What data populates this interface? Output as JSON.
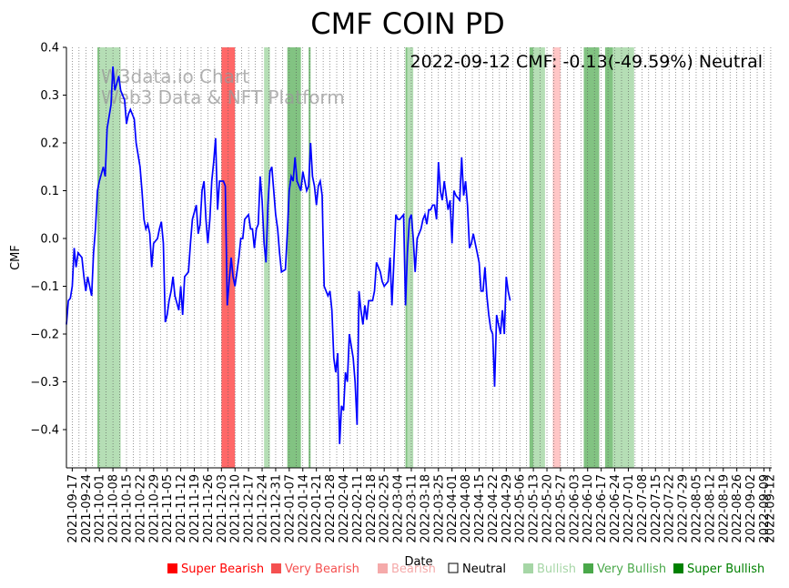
{
  "chart_data": {
    "type": "line",
    "title": "CMF COIN PD",
    "xlabel": "Date",
    "ylabel": "CMF",
    "ylim": [
      -0.48,
      0.4
    ],
    "yticks": [
      0.4,
      0.3,
      0.2,
      0.1,
      0.0,
      -0.1,
      -0.2,
      -0.3,
      -0.4
    ],
    "ytick_labels": [
      "0.4",
      "0.3",
      "0.2",
      "0.1",
      "0.0",
      "−0.1",
      "−0.2",
      "−0.3",
      "−0.4"
    ],
    "x_start": "2021-09-14",
    "x_end": "2022-09-13",
    "xtick_labels": [
      "2021-09-17",
      "2021-09-24",
      "2021-10-01",
      "2021-10-08",
      "2021-10-15",
      "2021-10-22",
      "2021-10-29",
      "2021-11-05",
      "2021-11-12",
      "2021-11-19",
      "2021-11-26",
      "2021-12-03",
      "2021-12-10",
      "2021-12-17",
      "2021-12-24",
      "2021-12-31",
      "2022-01-07",
      "2022-01-14",
      "2022-01-21",
      "2022-01-28",
      "2022-02-04",
      "2022-02-11",
      "2022-02-18",
      "2022-02-25",
      "2022-03-04",
      "2022-03-11",
      "2022-03-18",
      "2022-03-25",
      "2022-04-01",
      "2022-04-08",
      "2022-04-15",
      "2022-04-22",
      "2022-04-29",
      "2022-05-06",
      "2022-05-13",
      "2022-05-20",
      "2022-05-27",
      "2022-06-03",
      "2022-06-10",
      "2022-06-17",
      "2022-06-24",
      "2022-07-01",
      "2022-07-08",
      "2022-07-15",
      "2022-07-22",
      "2022-07-29",
      "2022-08-05",
      "2022-08-12",
      "2022-08-19",
      "2022-08-26",
      "2022-09-02",
      "2022-09-09",
      "2022-09-12"
    ],
    "series": [
      {
        "name": "CMF",
        "color": "#0000ff",
        "points": [
          [
            "2021-09-14",
            -0.18
          ],
          [
            "2021-09-15",
            -0.13
          ],
          [
            "2021-09-16",
            -0.125
          ],
          [
            "2021-09-17",
            -0.1
          ],
          [
            "2021-09-18",
            -0.02
          ],
          [
            "2021-09-19",
            -0.06
          ],
          [
            "2021-09-20",
            -0.03
          ],
          [
            "2021-09-22",
            -0.04
          ],
          [
            "2021-09-23",
            -0.08
          ],
          [
            "2021-09-24",
            -0.11
          ],
          [
            "2021-09-25",
            -0.08
          ],
          [
            "2021-09-26",
            -0.1
          ],
          [
            "2021-09-27",
            -0.12
          ],
          [
            "2021-09-28",
            -0.03
          ],
          [
            "2021-09-29",
            0.02
          ],
          [
            "2021-09-30",
            0.1
          ],
          [
            "2021-10-01",
            0.12
          ],
          [
            "2021-10-03",
            0.15
          ],
          [
            "2021-10-04",
            0.13
          ],
          [
            "2021-10-05",
            0.23
          ],
          [
            "2021-10-07",
            0.28
          ],
          [
            "2021-10-08",
            0.36
          ],
          [
            "2021-10-09",
            0.31
          ],
          [
            "2021-10-11",
            0.34
          ],
          [
            "2021-10-12",
            0.31
          ],
          [
            "2021-10-13",
            0.3
          ],
          [
            "2021-10-14",
            0.29
          ],
          [
            "2021-10-15",
            0.24
          ],
          [
            "2021-10-16",
            0.26
          ],
          [
            "2021-10-17",
            0.27
          ],
          [
            "2021-10-19",
            0.25
          ],
          [
            "2021-10-20",
            0.2
          ],
          [
            "2021-10-22",
            0.15
          ],
          [
            "2021-10-23",
            0.1
          ],
          [
            "2021-10-24",
            0.04
          ],
          [
            "2021-10-25",
            0.02
          ],
          [
            "2021-10-26",
            0.03
          ],
          [
            "2021-10-27",
            0.01
          ],
          [
            "2021-10-28",
            -0.06
          ],
          [
            "2021-10-29",
            -0.01
          ],
          [
            "2021-10-31",
            0.0
          ],
          [
            "2021-11-01",
            0.02
          ],
          [
            "2021-11-02",
            0.035
          ],
          [
            "2021-11-03",
            -0.01
          ],
          [
            "2021-11-04",
            -0.175
          ],
          [
            "2021-11-05",
            -0.16
          ],
          [
            "2021-11-06",
            -0.13
          ],
          [
            "2021-11-07",
            -0.11
          ],
          [
            "2021-11-08",
            -0.08
          ],
          [
            "2021-11-09",
            -0.12
          ],
          [
            "2021-11-11",
            -0.15
          ],
          [
            "2021-11-12",
            -0.1
          ],
          [
            "2021-11-13",
            -0.16
          ],
          [
            "2021-11-14",
            -0.08
          ],
          [
            "2021-11-16",
            -0.07
          ],
          [
            "2021-11-17",
            -0.01
          ],
          [
            "2021-11-18",
            0.04
          ],
          [
            "2021-11-20",
            0.07
          ],
          [
            "2021-11-21",
            0.01
          ],
          [
            "2021-11-22",
            0.03
          ],
          [
            "2021-11-23",
            0.1
          ],
          [
            "2021-11-24",
            0.12
          ],
          [
            "2021-11-25",
            0.04
          ],
          [
            "2021-11-26",
            -0.01
          ],
          [
            "2021-11-27",
            0.04
          ],
          [
            "2021-11-28",
            0.12
          ],
          [
            "2021-11-29",
            0.16
          ],
          [
            "2021-11-30",
            0.21
          ],
          [
            "2021-12-01",
            0.06
          ],
          [
            "2021-12-02",
            0.12
          ],
          [
            "2021-12-04",
            0.12
          ],
          [
            "2021-12-05",
            0.11
          ],
          [
            "2021-12-06",
            -0.14
          ],
          [
            "2021-12-07",
            -0.09
          ],
          [
            "2021-12-08",
            -0.04
          ],
          [
            "2021-12-09",
            -0.08
          ],
          [
            "2021-12-10",
            -0.1
          ],
          [
            "2021-12-11",
            -0.07
          ],
          [
            "2021-12-12",
            -0.04
          ],
          [
            "2021-12-13",
            0.0
          ],
          [
            "2021-12-14",
            0.0
          ],
          [
            "2021-12-15",
            0.04
          ],
          [
            "2021-12-17",
            0.05
          ],
          [
            "2021-12-18",
            0.02
          ],
          [
            "2021-12-19",
            0.02
          ],
          [
            "2021-12-20",
            -0.02
          ],
          [
            "2021-12-21",
            0.02
          ],
          [
            "2021-12-22",
            0.03
          ],
          [
            "2021-12-23",
            0.13
          ],
          [
            "2021-12-24",
            0.08
          ],
          [
            "2021-12-25",
            -0.01
          ],
          [
            "2021-12-26",
            -0.05
          ],
          [
            "2021-12-27",
            0.07
          ],
          [
            "2021-12-28",
            0.14
          ],
          [
            "2021-12-29",
            0.15
          ],
          [
            "2021-12-30",
            0.1
          ],
          [
            "2021-12-31",
            0.05
          ],
          [
            "2022-01-01",
            0.02
          ],
          [
            "2022-01-02",
            -0.03
          ],
          [
            "2022-01-03",
            -0.07
          ],
          [
            "2022-01-05",
            -0.065
          ],
          [
            "2022-01-06",
            0.01
          ],
          [
            "2022-01-07",
            0.1
          ],
          [
            "2022-01-08",
            0.13
          ],
          [
            "2022-01-09",
            0.12
          ],
          [
            "2022-01-10",
            0.17
          ],
          [
            "2022-01-11",
            0.12
          ],
          [
            "2022-01-13",
            0.1
          ],
          [
            "2022-01-14",
            0.14
          ],
          [
            "2022-01-15",
            0.12
          ],
          [
            "2022-01-16",
            0.1
          ],
          [
            "2022-01-17",
            0.11
          ],
          [
            "2022-01-18",
            0.2
          ],
          [
            "2022-01-19",
            0.13
          ],
          [
            "2022-01-20",
            0.11
          ],
          [
            "2022-01-21",
            0.07
          ],
          [
            "2022-01-22",
            0.11
          ],
          [
            "2022-01-23",
            0.12
          ],
          [
            "2022-01-24",
            0.09
          ],
          [
            "2022-01-25",
            -0.1
          ],
          [
            "2022-01-27",
            -0.12
          ],
          [
            "2022-01-28",
            -0.11
          ],
          [
            "2022-01-29",
            -0.15
          ],
          [
            "2022-01-30",
            -0.25
          ],
          [
            "2022-01-31",
            -0.28
          ],
          [
            "2022-02-01",
            -0.24
          ],
          [
            "2022-02-02",
            -0.43
          ],
          [
            "2022-02-03",
            -0.35
          ],
          [
            "2022-02-04",
            -0.36
          ],
          [
            "2022-02-05",
            -0.28
          ],
          [
            "2022-02-06",
            -0.3
          ],
          [
            "2022-02-07",
            -0.2
          ],
          [
            "2022-02-09",
            -0.25
          ],
          [
            "2022-02-10",
            -0.3
          ],
          [
            "2022-02-11",
            -0.39
          ],
          [
            "2022-02-12",
            -0.11
          ],
          [
            "2022-02-13",
            -0.15
          ],
          [
            "2022-02-14",
            -0.18
          ],
          [
            "2022-02-15",
            -0.14
          ],
          [
            "2022-02-16",
            -0.17
          ],
          [
            "2022-02-17",
            -0.13
          ],
          [
            "2022-02-19",
            -0.13
          ],
          [
            "2022-02-20",
            -0.11
          ],
          [
            "2022-02-21",
            -0.05
          ],
          [
            "2022-02-23",
            -0.07
          ],
          [
            "2022-02-24",
            -0.09
          ],
          [
            "2022-02-25",
            -0.1
          ],
          [
            "2022-02-27",
            -0.09
          ],
          [
            "2022-02-28",
            -0.04
          ],
          [
            "2022-03-01",
            -0.14
          ],
          [
            "2022-03-02",
            -0.05
          ],
          [
            "2022-03-03",
            0.05
          ],
          [
            "2022-03-04",
            0.04
          ],
          [
            "2022-03-05",
            0.04
          ],
          [
            "2022-03-07",
            0.05
          ],
          [
            "2022-03-08",
            -0.14
          ],
          [
            "2022-03-09",
            -0.03
          ],
          [
            "2022-03-10",
            0.04
          ],
          [
            "2022-03-11",
            0.05
          ],
          [
            "2022-03-12",
            0.0
          ],
          [
            "2022-03-13",
            -0.07
          ],
          [
            "2022-03-14",
            0.0
          ],
          [
            "2022-03-15",
            0.01
          ],
          [
            "2022-03-16",
            0.02
          ],
          [
            "2022-03-17",
            0.04
          ],
          [
            "2022-03-18",
            0.05
          ],
          [
            "2022-03-19",
            0.03
          ],
          [
            "2022-03-20",
            0.06
          ],
          [
            "2022-03-21",
            0.06
          ],
          [
            "2022-03-22",
            0.07
          ],
          [
            "2022-03-23",
            0.07
          ],
          [
            "2022-03-24",
            0.04
          ],
          [
            "2022-03-25",
            0.16
          ],
          [
            "2022-03-26",
            0.1
          ],
          [
            "2022-03-27",
            0.08
          ],
          [
            "2022-03-28",
            0.12
          ],
          [
            "2022-03-29",
            0.09
          ],
          [
            "2022-03-30",
            0.06
          ],
          [
            "2022-03-31",
            0.08
          ],
          [
            "2022-04-01",
            -0.01
          ],
          [
            "2022-04-02",
            0.1
          ],
          [
            "2022-04-03",
            0.09
          ],
          [
            "2022-04-04",
            0.085
          ],
          [
            "2022-04-05",
            0.08
          ],
          [
            "2022-04-06",
            0.17
          ],
          [
            "2022-04-07",
            0.09
          ],
          [
            "2022-04-08",
            0.12
          ],
          [
            "2022-04-09",
            0.07
          ],
          [
            "2022-04-10",
            -0.02
          ],
          [
            "2022-04-11",
            -0.01
          ],
          [
            "2022-04-12",
            0.01
          ],
          [
            "2022-04-13",
            -0.01
          ],
          [
            "2022-04-14",
            -0.03
          ],
          [
            "2022-04-15",
            -0.05
          ],
          [
            "2022-04-16",
            -0.11
          ],
          [
            "2022-04-17",
            -0.11
          ],
          [
            "2022-04-18",
            -0.06
          ],
          [
            "2022-04-19",
            -0.12
          ],
          [
            "2022-04-20",
            -0.16
          ],
          [
            "2022-04-21",
            -0.19
          ],
          [
            "2022-04-22",
            -0.2
          ],
          [
            "2022-04-23",
            -0.31
          ],
          [
            "2022-04-24",
            -0.16
          ],
          [
            "2022-04-25",
            -0.18
          ],
          [
            "2022-04-26",
            -0.2
          ],
          [
            "2022-04-27",
            -0.15
          ],
          [
            "2022-04-28",
            -0.2
          ],
          [
            "2022-04-29",
            -0.08
          ],
          [
            "2022-04-30",
            -0.11
          ],
          [
            "2022-05-01",
            -0.13
          ]
        ]
      }
    ],
    "annotation": "2022-09-12 CMF: -0.13(-49.59%) Neutral",
    "watermark": [
      "W3data.io Chart",
      "Web3 Data & NFT Platform"
    ],
    "shaded_spans": [
      {
        "start": "2021-09-30",
        "end": "2021-10-01",
        "level": "Very Bullish"
      },
      {
        "start": "2021-10-01",
        "end": "2021-10-12",
        "level": "Bullish"
      },
      {
        "start": "2021-12-03",
        "end": "2021-12-10",
        "level": "Very Bearish"
      },
      {
        "start": "2021-12-25",
        "end": "2021-12-28",
        "level": "Bullish"
      },
      {
        "start": "2022-01-06",
        "end": "2022-01-13",
        "level": "Very Bullish"
      },
      {
        "start": "2022-01-17",
        "end": "2022-01-18",
        "level": "Very Bullish"
      },
      {
        "start": "2022-03-08",
        "end": "2022-03-09",
        "level": "Very Bullish"
      },
      {
        "start": "2022-03-09",
        "end": "2022-03-12",
        "level": "Bullish"
      },
      {
        "start": "2022-05-11",
        "end": "2022-05-13",
        "level": "Very Bullish"
      },
      {
        "start": "2022-05-13",
        "end": "2022-05-19",
        "level": "Bullish"
      },
      {
        "start": "2022-05-23",
        "end": "2022-05-27",
        "level": "Bearish"
      },
      {
        "start": "2022-06-08",
        "end": "2022-06-16",
        "level": "Very Bullish"
      },
      {
        "start": "2022-06-19",
        "end": "2022-06-23",
        "level": "Very Bullish"
      },
      {
        "start": "2022-06-23",
        "end": "2022-07-04",
        "level": "Bullish"
      }
    ],
    "legend": [
      {
        "label": "Super Bearish",
        "color": "#ff0000"
      },
      {
        "label": "Very Bearish",
        "color": "#f55050"
      },
      {
        "label": "Bearish",
        "color": "#f5aaaa"
      },
      {
        "label": "Neutral",
        "color": "#000000"
      },
      {
        "label": "Bullish",
        "color": "#a6d6a6"
      },
      {
        "label": "Very Bullish",
        "color": "#4aa84a"
      },
      {
        "label": "Super Bullish",
        "color": "#008000"
      }
    ],
    "level_colors": {
      "Super Bearish": "#ff0000",
      "Very Bearish": "#ff4d4d",
      "Bearish": "#ffbcbc",
      "Bullish": "#a8d8a8",
      "Very Bullish": "#6cb86c",
      "Super Bullish": "#008000"
    }
  }
}
